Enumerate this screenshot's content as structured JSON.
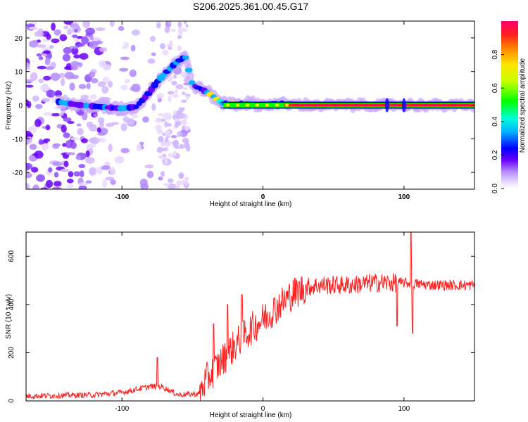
{
  "title": "S206.2025.361.00.45.G17",
  "chart_data": [
    {
      "type": "heatmap",
      "name": "spectrogram",
      "xlabel": "Height of straight line (km)",
      "ylabel": "Frequency (Hz)",
      "xlim": [
        -168,
        150
      ],
      "ylim": [
        -25,
        25
      ],
      "xticks": [
        -100,
        0,
        100
      ],
      "yticks": [
        -20,
        -10,
        0,
        10,
        20
      ],
      "ridge": {
        "description": "dominant frequency track (km, Hz)",
        "points": [
          [
            -145,
            1.0
          ],
          [
            -130,
            0.0
          ],
          [
            -115,
            -0.5
          ],
          [
            -100,
            -1.0
          ],
          [
            -90,
            -0.5
          ],
          [
            -82,
            3.0
          ],
          [
            -75,
            7.0
          ],
          [
            -68,
            10.0
          ],
          [
            -62,
            12.5
          ],
          [
            -55,
            14.5
          ],
          [
            -50,
            6.0
          ],
          [
            -45,
            5.0
          ],
          [
            -38,
            3.5
          ],
          [
            -32,
            1.5
          ],
          [
            -28,
            0.5
          ],
          [
            -20,
            0.5
          ],
          [
            -10,
            0.5
          ],
          [
            0,
            0.0
          ],
          [
            10,
            0.5
          ],
          [
            30,
            0.0
          ],
          [
            60,
            0.0
          ],
          [
            100,
            0.0
          ],
          [
            150,
            0.0
          ]
        ]
      },
      "colorbar": {
        "label": "Normalized spectral amplitude",
        "range": [
          0,
          1
        ],
        "ticks": [
          "0.0",
          "0.2",
          "0.4",
          "0.6",
          "0.8"
        ]
      }
    },
    {
      "type": "line",
      "name": "snr",
      "xlabel": "Height of straight line (km)",
      "ylabel": "SNR (10 * v/v)",
      "xlim": [
        -168,
        150
      ],
      "ylim": [
        0,
        700
      ],
      "xticks": [
        -100,
        0,
        100
      ],
      "yticks": [
        0,
        200,
        400,
        600
      ],
      "color": "#ff2020",
      "trend": [
        [
          -168,
          20
        ],
        [
          -120,
          25
        ],
        [
          -100,
          35
        ],
        [
          -80,
          60
        ],
        [
          -72,
          60
        ],
        [
          -60,
          25
        ],
        [
          -45,
          30
        ],
        [
          -40,
          90
        ],
        [
          -30,
          160
        ],
        [
          -20,
          230
        ],
        [
          -10,
          290
        ],
        [
          0,
          340
        ],
        [
          10,
          390
        ],
        [
          20,
          440
        ],
        [
          30,
          470
        ],
        [
          40,
          480
        ],
        [
          60,
          480
        ],
        [
          80,
          490
        ],
        [
          100,
          490
        ],
        [
          120,
          480
        ],
        [
          150,
          480
        ]
      ],
      "spikes": [
        [
          -75,
          180
        ],
        [
          -35,
          320
        ],
        [
          -25,
          400
        ],
        [
          -15,
          440
        ],
        [
          95,
          310
        ],
        [
          105,
          700
        ],
        [
          106,
          280
        ]
      ]
    }
  ]
}
